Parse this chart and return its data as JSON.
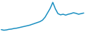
{
  "x": [
    0,
    1,
    2,
    3,
    4,
    5,
    6,
    7,
    8,
    9,
    10,
    11,
    12,
    13,
    14,
    15,
    16,
    17,
    18,
    19,
    20,
    21,
    22,
    23,
    24,
    25,
    26,
    27,
    28,
    29,
    30,
    31,
    32
  ],
  "y": [
    0.08,
    0.06,
    0.07,
    0.09,
    0.1,
    0.12,
    0.13,
    0.15,
    0.17,
    0.19,
    0.21,
    0.23,
    0.26,
    0.29,
    0.32,
    0.35,
    0.4,
    0.5,
    0.65,
    0.8,
    1.0,
    0.78,
    0.62,
    0.58,
    0.6,
    0.57,
    0.6,
    0.62,
    0.65,
    0.63,
    0.6,
    0.62,
    0.64
  ],
  "line_color": "#1a8fc1",
  "background_color": "#ffffff",
  "linewidth": 1.1,
  "ylim": [
    0.0,
    1.08
  ]
}
